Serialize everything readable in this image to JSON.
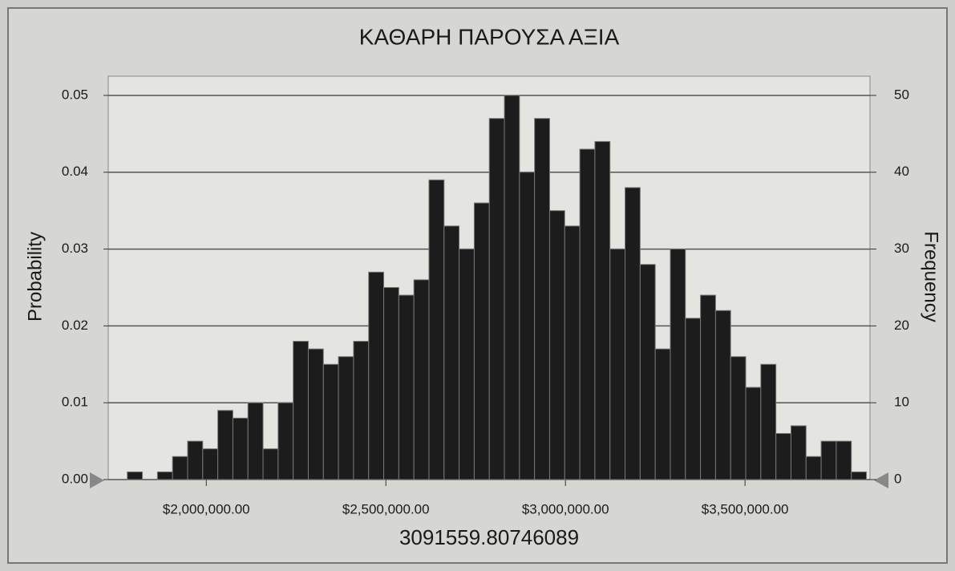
{
  "chart_data": {
    "type": "histogram",
    "title": "ΚΑΘΑΡΗ ΠΑΡΟΥΣΑ ΑΞΙΑ",
    "ylabel": "Probability",
    "y2label": "Frequency",
    "xlabel": "3091559.80746089",
    "bins": [
      1780000,
      1822000,
      1864000,
      1906000,
      1948000,
      1990000,
      2032000,
      2074000,
      2116000,
      2158000,
      2200000,
      2242000,
      2284000,
      2326000,
      2368000,
      2410000,
      2452000,
      2494000,
      2536000,
      2578000,
      2620000,
      2662000,
      2704000,
      2746000,
      2788000,
      2830000,
      2872000,
      2914000,
      2956000,
      2998000,
      3040000,
      3082000,
      3124000,
      3166000,
      3208000,
      3250000,
      3292000,
      3334000,
      3376000,
      3418000,
      3460000,
      3502000,
      3544000,
      3586000,
      3628000,
      3670000,
      3712000,
      3754000,
      3796000,
      3838000
    ],
    "series": [
      {
        "color": "#1c1c1c",
        "axis": "y2",
        "values": [
          1,
          0,
          1,
          3,
          5,
          4,
          9,
          8,
          10,
          4,
          10,
          18,
          17,
          15,
          16,
          18,
          27,
          25,
          24,
          26,
          39,
          33,
          30,
          36,
          47,
          50,
          40,
          47,
          35,
          33,
          43,
          44,
          30,
          38,
          28,
          17,
          30,
          21,
          24,
          22,
          16,
          12,
          15,
          6,
          7,
          3,
          5,
          5,
          1
        ]
      }
    ],
    "xlim": [
      1727000,
      3848000
    ],
    "xticks": [
      {
        "value": 2000000,
        "label": "$2,000,000.00"
      },
      {
        "value": 2500000,
        "label": "$2,500,000.00"
      },
      {
        "value": 3000000,
        "label": "$3,000,000.00"
      },
      {
        "value": 3500000,
        "label": "$3,500,000.00"
      }
    ],
    "ylim": [
      0,
      0.0525
    ],
    "yticks": [
      {
        "value": 0,
        "label": "0.00"
      },
      0.01,
      0.02,
      0.03,
      0.04,
      0.05
    ],
    "y2lim": [
      0,
      52.5
    ],
    "y2ticks": [
      0,
      10,
      20,
      30,
      40,
      50
    ],
    "grid": true
  }
}
